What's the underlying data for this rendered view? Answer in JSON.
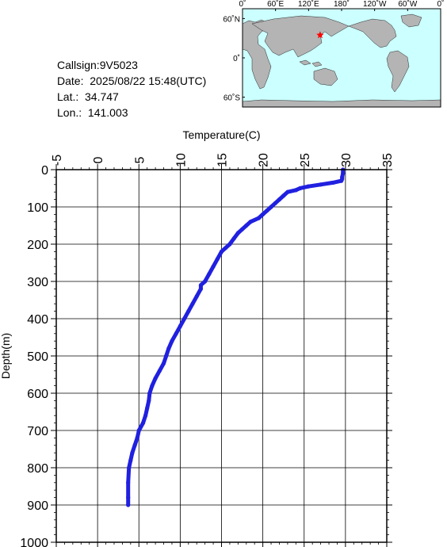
{
  "info": {
    "callsign": "Callsign:9V5023",
    "date": "Date:  2025/08/22 15:48(UTC)",
    "lat": "Lat.:  34.747",
    "lon": "Lon.:  141.003"
  },
  "map": {
    "lon_labels": [
      "0˚",
      "60˚E",
      "120˚E",
      "180˚",
      "120˚W",
      "60˚W",
      "0˚"
    ],
    "lat_labels": [
      "60˚N",
      "0˚",
      "60˚S"
    ],
    "ocean_color": "#ccffff",
    "land_color": "#b4b4b4",
    "marker_color": "#ff0000",
    "marker": {
      "lon": 141.003,
      "lat": 34.747
    }
  },
  "chart_data": {
    "type": "line",
    "title": "",
    "xlabel": "Temperature(C)",
    "ylabel": "Depth(m)",
    "xlim": [
      -5,
      35
    ],
    "ylim": [
      0,
      1000
    ],
    "y_inverted": true,
    "grid": true,
    "xticks": [
      "-5",
      "0",
      "5",
      "10",
      "15",
      "20",
      "25",
      "30",
      "35"
    ],
    "yticks": [
      "0",
      "100",
      "200",
      "300",
      "400",
      "500",
      "600",
      "700",
      "800",
      "900",
      "1000"
    ],
    "series": [
      {
        "color": "#2020e0",
        "temperature": [
          29.7,
          29.7,
          29.6,
          29.6,
          29.5,
          28.5,
          27.0,
          25.5,
          24.5,
          24.0,
          23.0,
          22.5,
          22.0,
          21.5,
          21.0,
          20.5,
          20.0,
          19.5,
          18.5,
          18.0,
          17.5,
          17.0,
          16.5,
          16.0,
          15.5,
          15.0,
          14.5,
          14.0,
          13.5,
          13.0,
          12.5,
          12.5,
          12.0,
          11.5,
          11.0,
          10.5,
          10.0,
          9.5,
          9.0,
          8.6,
          8.3,
          8.0,
          7.5,
          7.0,
          6.6,
          6.3,
          6.2,
          6.0,
          5.8,
          5.5,
          5.0,
          4.8,
          4.5,
          4.2,
          4.0,
          3.8,
          3.7,
          3.7,
          3.7
        ],
        "depth": [
          0,
          10,
          20,
          25,
          30,
          35,
          40,
          45,
          50,
          55,
          60,
          70,
          80,
          90,
          100,
          110,
          120,
          130,
          140,
          150,
          160,
          170,
          185,
          200,
          210,
          220,
          240,
          260,
          280,
          300,
          310,
          320,
          340,
          360,
          380,
          400,
          420,
          440,
          460,
          480,
          500,
          520,
          540,
          560,
          580,
          600,
          620,
          640,
          660,
          680,
          700,
          720,
          740,
          760,
          780,
          800,
          840,
          880,
          900
        ]
      }
    ]
  }
}
